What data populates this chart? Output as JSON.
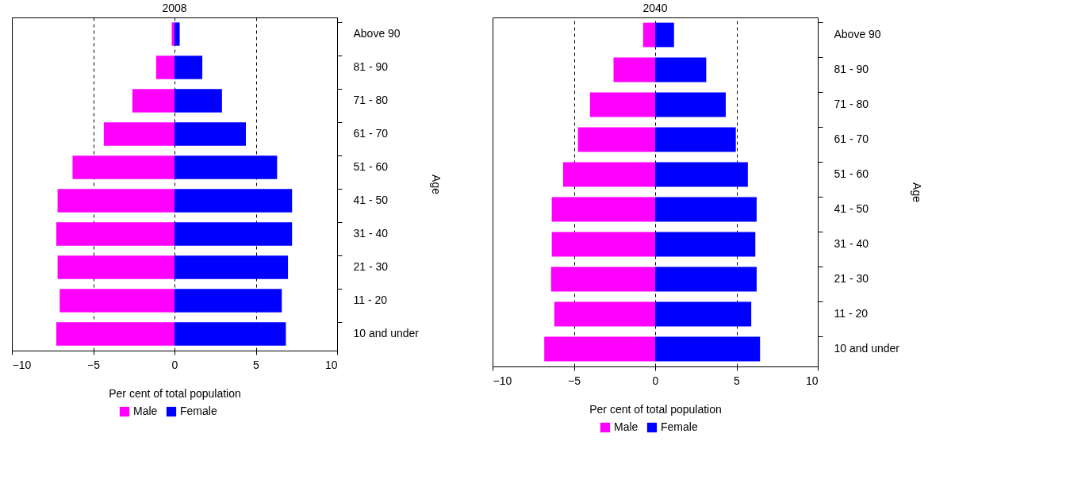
{
  "chart_data": [
    {
      "type": "bar",
      "title": "2008",
      "orientation": "horizontal",
      "stacked": true,
      "xlabel": "Per cent of total population",
      "ylabel": "Age",
      "categories": [
        "Above 90",
        "81 - 90",
        "71 - 80",
        "61 - 70",
        "51 - 60",
        "41 - 50",
        "31 - 40",
        "21 - 30",
        "11 - 20",
        "10 and under"
      ],
      "xlim": [
        -10,
        10
      ],
      "xticks": [
        -10,
        -5,
        0,
        5,
        10
      ],
      "grid": "x",
      "legend": "bottom",
      "series": [
        {
          "name": "Male",
          "color": "#ff00ff",
          "values": [
            -0.17,
            -1.13,
            -2.59,
            -4.35,
            -6.27,
            -7.19,
            -7.27,
            -7.19,
            -7.06,
            -7.27
          ]
        },
        {
          "name": "Female",
          "color": "#0000ff",
          "values": [
            0.32,
            1.71,
            2.92,
            4.39,
            6.31,
            7.23,
            7.23,
            6.98,
            6.6,
            6.85
          ]
        }
      ]
    },
    {
      "type": "bar",
      "title": "2040",
      "orientation": "horizontal",
      "stacked": true,
      "xlabel": "Per cent of total population",
      "ylabel": "Age",
      "categories": [
        "Above 90",
        "81 - 90",
        "71 - 80",
        "61 - 70",
        "51 - 60",
        "41 - 50",
        "31 - 40",
        "21 - 30",
        "11 - 20",
        "10 and under"
      ],
      "xlim": [
        -10,
        10
      ],
      "xticks": [
        -10,
        -5,
        0,
        5,
        10
      ],
      "grid": "x",
      "legend": "bottom",
      "series": [
        {
          "name": "Male",
          "color": "#ff00ff",
          "values": [
            -0.74,
            -2.56,
            -4.01,
            -4.75,
            -5.66,
            -6.36,
            -6.36,
            -6.4,
            -6.2,
            -6.82
          ]
        },
        {
          "name": "Female",
          "color": "#0000ff",
          "values": [
            1.16,
            3.14,
            4.34,
            4.96,
            5.7,
            6.24,
            6.16,
            6.24,
            5.91,
            6.45
          ]
        }
      ]
    }
  ]
}
